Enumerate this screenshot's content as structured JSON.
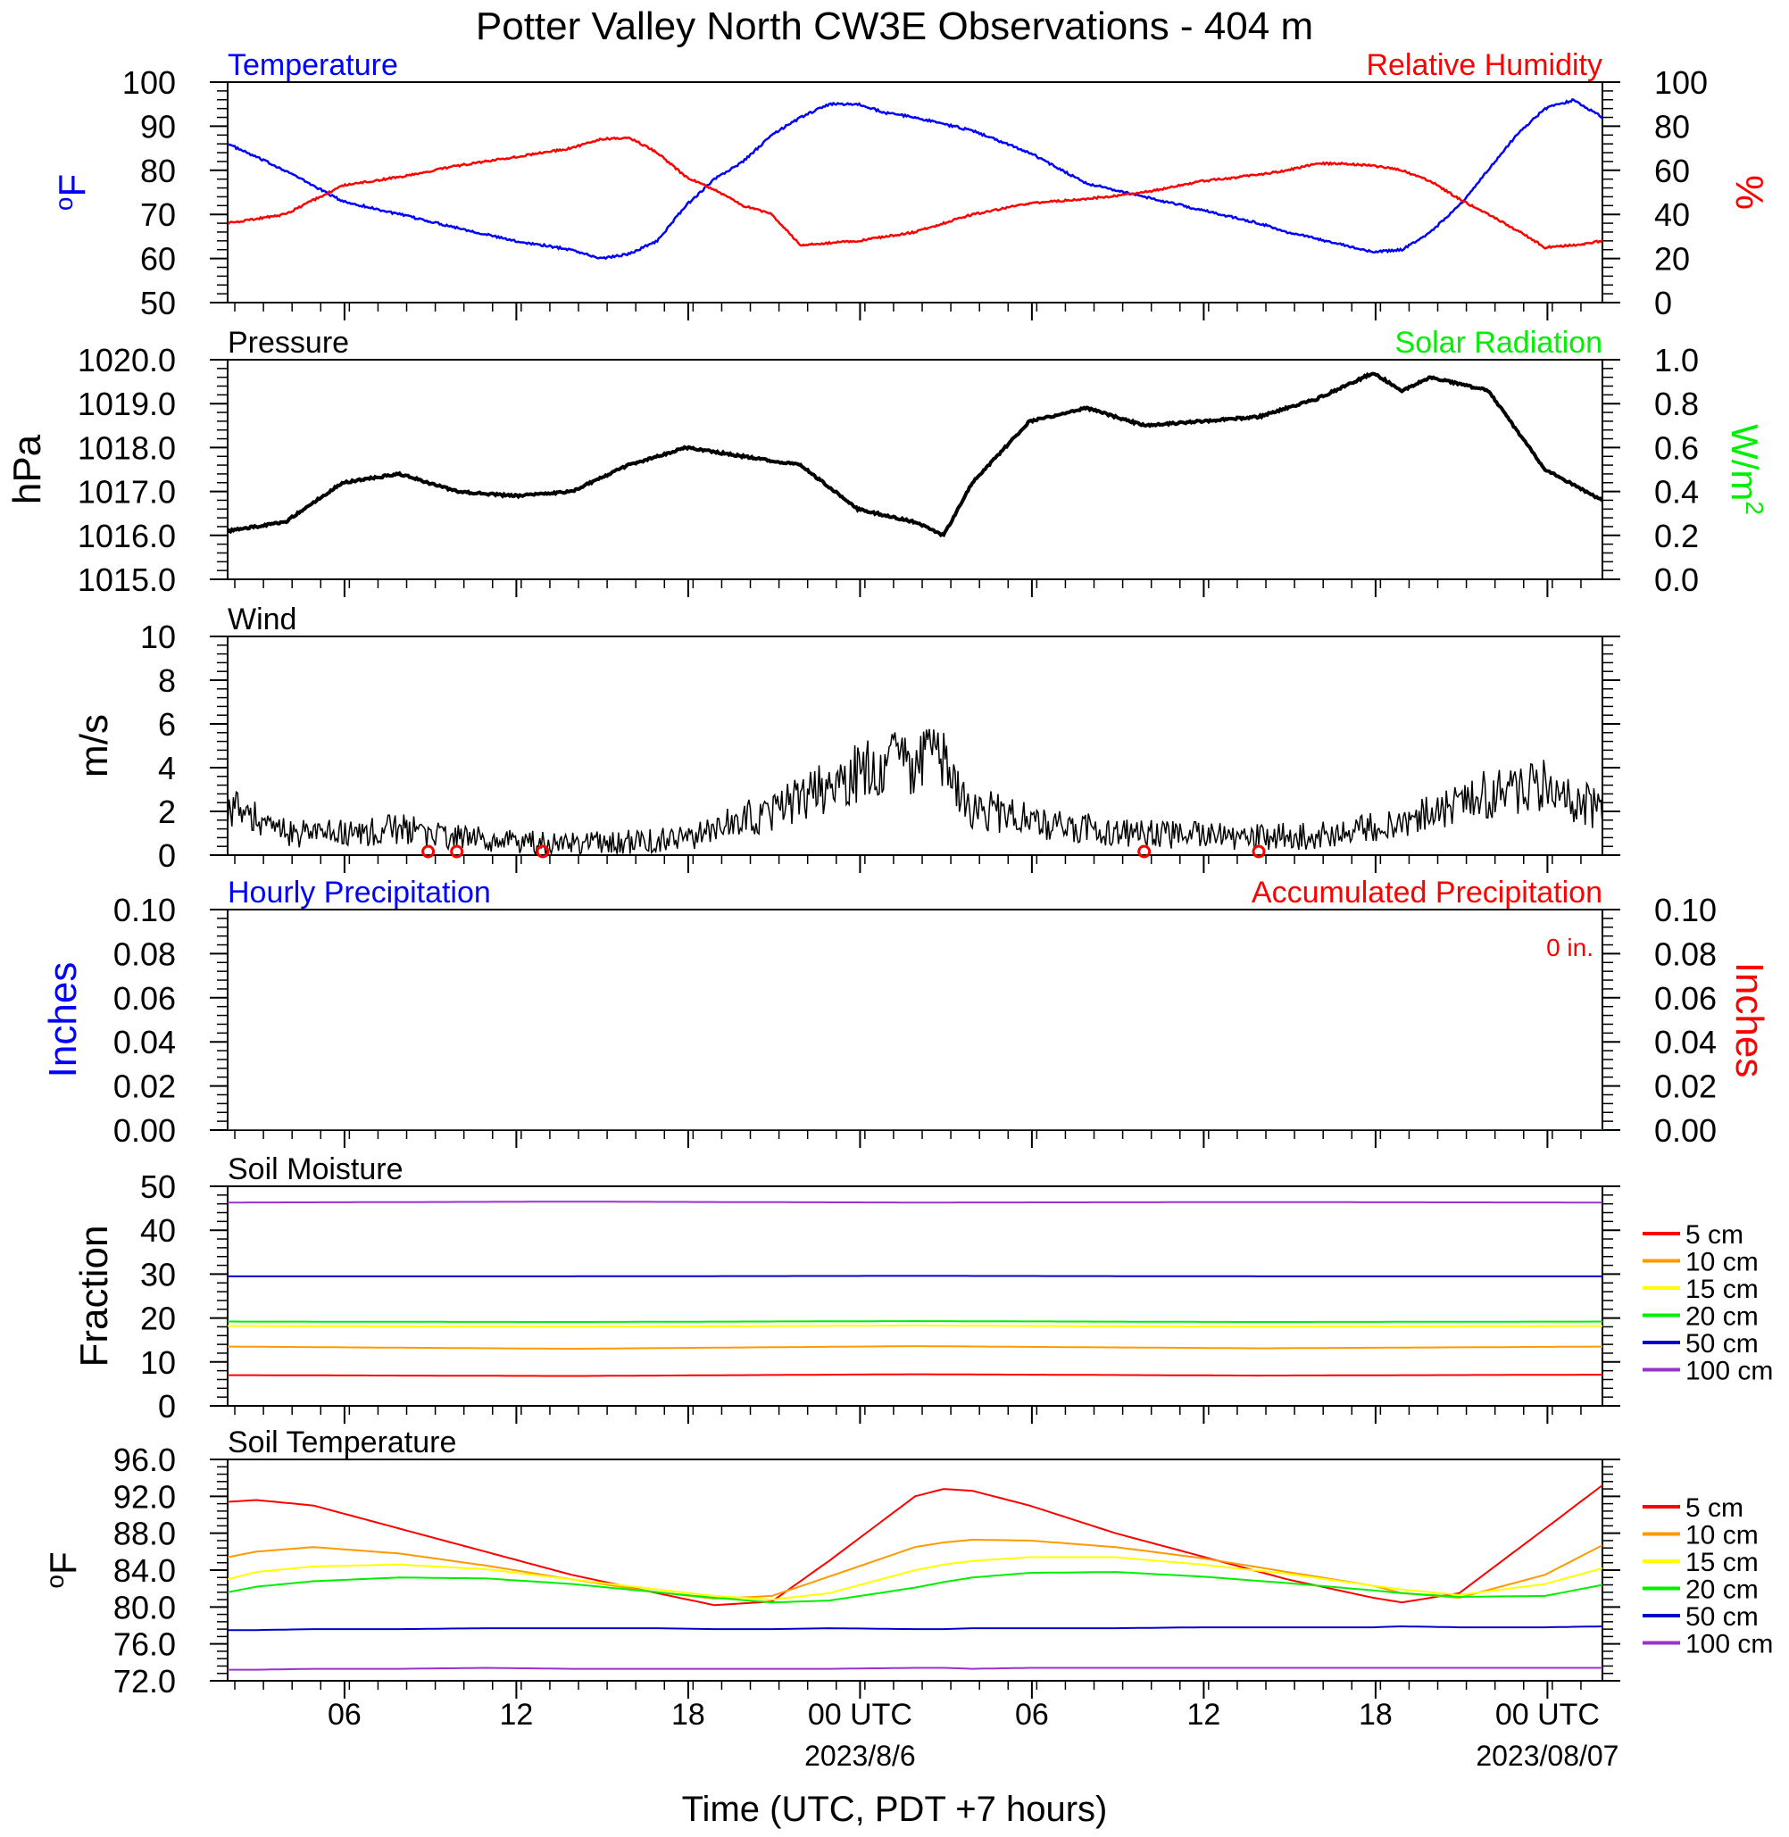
{
  "title": "Potter Valley North CW3E Observations - 404 m",
  "xlabel": "Time (UTC, PDT +7 hours)",
  "x_ticks": [
    "06",
    "12",
    "18",
    "00 UTC",
    "06",
    "12",
    "18",
    "00 UTC"
  ],
  "x_dates": [
    "2023/8/6",
    "2023/08/07"
  ],
  "colors": {
    "blue": "#0000ff",
    "red": "#ff0000",
    "green": "#00ee00",
    "black": "#000000",
    "orange": "#ff9900",
    "yellow": "#ffff00",
    "darkblue": "#0000cc",
    "purple": "#9933cc"
  },
  "chart_data": [
    {
      "id": "temperature_rh",
      "type": "line",
      "title_left": "Temperature",
      "title_right": "Relative Humidity",
      "ylabel_left": "oF",
      "ylabel_right": "%",
      "ylim_left": [
        50,
        100
      ],
      "ylim_right": [
        0,
        100
      ],
      "yticks_left": [
        "100",
        "90",
        "80",
        "70",
        "60",
        "50"
      ],
      "yticks_right": [
        "100",
        "80",
        "60",
        "40",
        "20",
        "0"
      ],
      "x_hours": [
        0,
        2,
        4,
        6,
        8,
        10,
        12,
        13,
        14,
        15,
        16,
        17,
        18,
        19,
        20,
        21,
        22,
        23,
        24,
        26,
        28,
        30,
        32,
        34,
        36,
        37,
        38,
        39,
        40,
        41,
        42,
        43,
        44,
        45,
        46,
        47,
        48
      ],
      "series": [
        {
          "name": "Temperature",
          "axis": "left",
          "values": [
            86,
            80,
            73,
            70,
            67,
            64,
            62,
            60,
            61,
            64,
            72,
            78,
            82,
            88,
            92,
            95,
            95,
            93,
            92,
            89,
            84,
            77,
            74,
            71,
            68,
            66,
            64.5,
            63,
            61.5,
            62,
            66,
            72,
            80,
            88,
            94,
            96,
            92
          ]
        },
        {
          "name": "Relative Humidity",
          "axis": "right",
          "values": [
            36,
            40,
            53,
            57,
            62,
            66,
            70,
            74,
            75,
            68,
            57,
            51,
            44,
            40,
            26,
            27,
            28,
            30,
            32,
            40,
            45,
            47,
            50,
            55,
            58,
            60,
            63,
            63,
            62,
            60,
            55,
            47,
            40,
            33,
            25,
            26,
            28
          ]
        }
      ]
    },
    {
      "id": "pressure",
      "type": "line",
      "title_left": "Pressure",
      "title_right": "Solar Radiation",
      "ylabel_left": "hPa",
      "ylabel_right": "W/m2",
      "ylim_left": [
        1015,
        1020
      ],
      "ylim_right": [
        0,
        1
      ],
      "yticks_left": [
        "1020.0",
        "1019.0",
        "1018.0",
        "1017.0",
        "1016.0",
        "1015.0"
      ],
      "yticks_right": [
        "1.0",
        "0.8",
        "0.6",
        "0.4",
        "0.2",
        "0.0"
      ],
      "x_hours": [
        0,
        2,
        4,
        6,
        8,
        10,
        12,
        14,
        16,
        18,
        20,
        22,
        24,
        25,
        26,
        28,
        30,
        32,
        34,
        36,
        38,
        40,
        41,
        42,
        44,
        46,
        48
      ],
      "series": [
        {
          "name": "Pressure",
          "values": [
            1016.1,
            1016.3,
            1017.2,
            1017.4,
            1017.0,
            1016.9,
            1017.0,
            1017.6,
            1018.0,
            1017.8,
            1017.6,
            1016.6,
            1016.3,
            1016.0,
            1017.2,
            1018.6,
            1018.9,
            1018.5,
            1018.6,
            1018.7,
            1019.1,
            1019.7,
            1019.3,
            1019.6,
            1019.3,
            1017.5,
            1016.8
          ]
        }
      ]
    },
    {
      "id": "wind",
      "type": "line",
      "title_left": "Wind",
      "ylabel_left": "m/s",
      "ylim_left": [
        0,
        10
      ],
      "yticks_left": [
        "10",
        "8",
        "6",
        "4",
        "2",
        "0"
      ],
      "x_hours": [
        0,
        2,
        4,
        6,
        8,
        10,
        12,
        14,
        16,
        18,
        20,
        21,
        22,
        23,
        24,
        25,
        26,
        28,
        30,
        32,
        34,
        36,
        38,
        40,
        42,
        44,
        46,
        48
      ],
      "series": [
        {
          "name": "Wind",
          "values": [
            2.2,
            1.0,
            1.0,
            1.2,
            0.8,
            0.6,
            0.5,
            0.6,
            0.8,
            1.6,
            2.5,
            3.2,
            3.8,
            4.2,
            4.2,
            4.5,
            2.2,
            1.6,
            1.2,
            1.0,
            0.9,
            0.8,
            0.9,
            1.3,
            2.0,
            2.8,
            3.2,
            2.0
          ]
        }
      ],
      "calm_hours": [
        7,
        8,
        11,
        32,
        36
      ]
    },
    {
      "id": "precipitation",
      "type": "line",
      "title_left": "Hourly Precipitation",
      "title_right": "Accumulated Precipitation",
      "annotation": "0 in.",
      "ylabel_left": "Inches",
      "ylabel_right": "Inches",
      "ylim_left": [
        0,
        0.1
      ],
      "ylim_right": [
        0,
        0.1
      ],
      "yticks_left": [
        "0.10",
        "0.08",
        "0.06",
        "0.04",
        "0.02",
        "0.00"
      ],
      "yticks_right": [
        "0.10",
        "0.08",
        "0.06",
        "0.04",
        "0.02",
        "0.00"
      ],
      "x_hours": [
        0,
        48
      ],
      "series": [
        {
          "name": "Hourly Precipitation",
          "values": [
            0,
            0
          ]
        },
        {
          "name": "Accumulated Precipitation",
          "values": [
            0,
            0
          ]
        }
      ]
    },
    {
      "id": "soil_moisture",
      "type": "line",
      "title_left": "Soil Moisture",
      "ylabel_left": "Fraction",
      "ylim_left": [
        0,
        50
      ],
      "yticks_left": [
        "50",
        "40",
        "30",
        "20",
        "10",
        "0"
      ],
      "legend": [
        "5 cm",
        "10 cm",
        "15 cm",
        "20 cm",
        "50 cm",
        "100 cm"
      ],
      "x_hours": [
        0,
        12,
        24,
        36,
        48
      ],
      "series": [
        {
          "name": "5 cm",
          "values": [
            7.0,
            6.8,
            7.2,
            6.9,
            7.1
          ]
        },
        {
          "name": "10 cm",
          "values": [
            13.5,
            13.0,
            13.6,
            13.1,
            13.5
          ]
        },
        {
          "name": "15 cm",
          "values": [
            18.2,
            18.0,
            18.3,
            18.0,
            18.2
          ]
        },
        {
          "name": "20 cm",
          "values": [
            19.2,
            19.1,
            19.3,
            19.1,
            19.2
          ]
        },
        {
          "name": "50 cm",
          "values": [
            29.5,
            29.5,
            29.6,
            29.5,
            29.5
          ]
        },
        {
          "name": "100 cm",
          "values": [
            46.3,
            46.5,
            46.3,
            46.4,
            46.3
          ]
        }
      ]
    },
    {
      "id": "soil_temperature",
      "type": "line",
      "title_left": "Soil Temperature",
      "ylabel_left": "oF",
      "ylim_left": [
        72,
        96
      ],
      "yticks_left": [
        "96.0",
        "92.0",
        "88.0",
        "84.0",
        "80.0",
        "76.0",
        "72.0"
      ],
      "legend": [
        "5 cm",
        "10 cm",
        "15 cm",
        "20 cm",
        "50 cm",
        "100 cm"
      ],
      "x_hours": [
        0,
        1,
        3,
        6,
        9,
        12,
        15,
        17,
        19,
        21,
        24,
        25,
        26,
        28,
        31,
        34,
        37,
        40,
        41,
        43,
        46,
        48
      ],
      "series": [
        {
          "name": "5 cm",
          "values": [
            91.4,
            91.6,
            91.0,
            88.5,
            86.0,
            83.5,
            81.5,
            80.2,
            80.6,
            85.0,
            92.0,
            92.8,
            92.6,
            91.0,
            88.0,
            85.5,
            83.0,
            81.0,
            80.5,
            81.5,
            88.5,
            93.2
          ]
        },
        {
          "name": "10 cm",
          "values": [
            85.4,
            86.0,
            86.5,
            85.8,
            84.5,
            83.0,
            81.6,
            80.9,
            81.2,
            83.3,
            86.5,
            87.0,
            87.3,
            87.2,
            86.5,
            85.3,
            83.8,
            82.3,
            81.5,
            81.0,
            83.5,
            86.7
          ]
        },
        {
          "name": "15 cm",
          "values": [
            83.0,
            83.8,
            84.4,
            84.6,
            84.1,
            83.0,
            81.9,
            81.2,
            80.8,
            81.5,
            84.0,
            84.6,
            85.0,
            85.4,
            85.4,
            84.6,
            83.6,
            82.3,
            81.9,
            81.3,
            82.5,
            84.2
          ]
        },
        {
          "name": "20 cm",
          "values": [
            81.6,
            82.2,
            82.8,
            83.2,
            83.1,
            82.5,
            81.6,
            81.0,
            80.5,
            80.7,
            82.1,
            82.7,
            83.2,
            83.7,
            83.8,
            83.3,
            82.6,
            81.8,
            81.5,
            81.1,
            81.2,
            82.4
          ]
        },
        {
          "name": "50 cm",
          "values": [
            77.5,
            77.5,
            77.6,
            77.6,
            77.7,
            77.7,
            77.7,
            77.6,
            77.6,
            77.7,
            77.6,
            77.6,
            77.7,
            77.7,
            77.7,
            77.8,
            77.8,
            77.8,
            77.9,
            77.8,
            77.8,
            77.9
          ]
        },
        {
          "name": "100 cm",
          "values": [
            73.2,
            73.2,
            73.3,
            73.3,
            73.4,
            73.3,
            73.3,
            73.3,
            73.3,
            73.3,
            73.4,
            73.4,
            73.3,
            73.4,
            73.4,
            73.4,
            73.4,
            73.4,
            73.4,
            73.4,
            73.4,
            73.4
          ]
        }
      ]
    }
  ]
}
